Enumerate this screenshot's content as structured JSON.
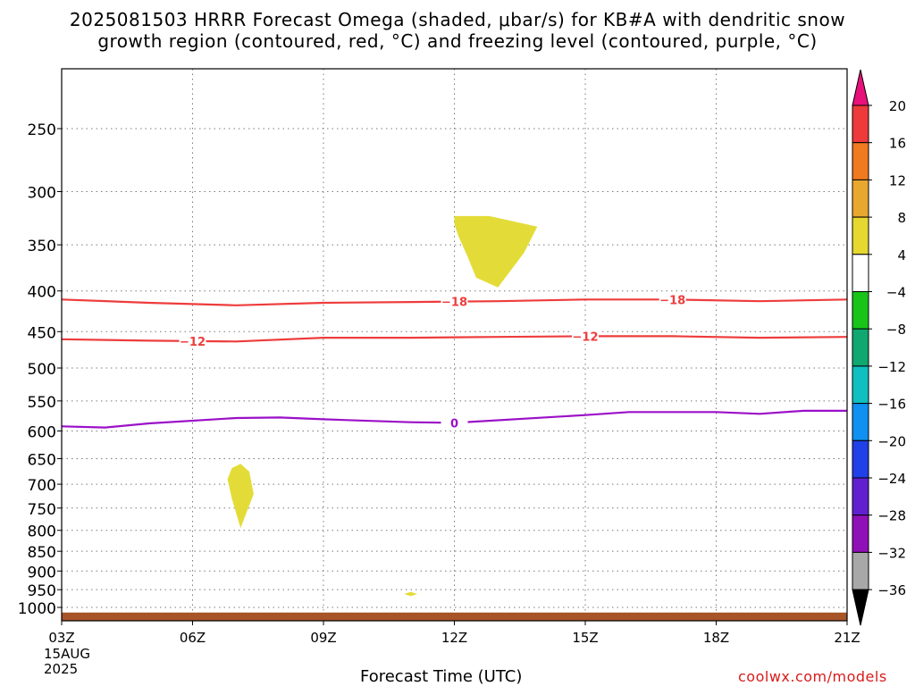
{
  "title": {
    "line1": "2025081503 HRRR Forecast Omega (shaded, μbar/s) for KB#A with dendritic snow",
    "line2": "growth region (contoured, red, °C) and freezing level (contoured, purple, °C)"
  },
  "xlabel": "Forecast Time (UTC)",
  "credit": "coolwx.com/models",
  "chart_data": {
    "type": "heatmap",
    "x_axis": {
      "ticks": [
        "03Z",
        "06Z",
        "09Z",
        "12Z",
        "15Z",
        "18Z",
        "21Z"
      ],
      "tick_hours": [
        3,
        6,
        9,
        12,
        15,
        18,
        21
      ],
      "date_label": [
        "15AUG",
        "2025"
      ],
      "range_hours": [
        3,
        21
      ]
    },
    "y_axis": {
      "label": "",
      "ticks": [
        250,
        300,
        350,
        400,
        450,
        500,
        550,
        600,
        650,
        700,
        750,
        800,
        850,
        900,
        950,
        1000
      ],
      "range_hPa": [
        200,
        1030
      ],
      "scale": "log",
      "inverted": true
    },
    "grid": true,
    "colorbar": {
      "ticks": [
        "20",
        "16",
        "12",
        "8",
        "4",
        "−4",
        "−8",
        "−12",
        "−16",
        "−20",
        "−24",
        "−28",
        "−32",
        "−36"
      ],
      "colors": [
        "#ee3a3a",
        "#f07a20",
        "#e8a830",
        "#e6d830",
        "#ffffff",
        "#18c418",
        "#10a870",
        "#10c0c0",
        "#1090f0",
        "#2040e8",
        "#6020d0",
        "#9010b8",
        "#a8a8a8"
      ],
      "top_arrow_color": "#e8107a",
      "bottom_arrow_color": "#000000"
    },
    "shaded_regions": [
      {
        "value_range": "4 to 8",
        "color": "#e3dc38",
        "points": [
          [
            12.0,
            322
          ],
          [
            12.8,
            322
          ],
          [
            13.9,
            332
          ],
          [
            13.6,
            358
          ],
          [
            13.0,
            396
          ],
          [
            12.5,
            385
          ],
          [
            12.3,
            362
          ],
          [
            12.1,
            342
          ],
          [
            12.0,
            330
          ]
        ]
      },
      {
        "value_range": "4 to 8",
        "color": "#e3dc38",
        "points": [
          [
            6.9,
            668
          ],
          [
            7.1,
            660
          ],
          [
            7.3,
            675
          ],
          [
            7.4,
            720
          ],
          [
            7.1,
            795
          ],
          [
            6.9,
            730
          ],
          [
            6.8,
            690
          ]
        ]
      },
      {
        "value_range": "4 to 8",
        "color": "#e3dc38",
        "points": [
          [
            10.85,
            962
          ],
          [
            11.0,
            956
          ],
          [
            11.15,
            962
          ],
          [
            11.0,
            968
          ]
        ]
      }
    ],
    "contours": [
      {
        "level": "−18",
        "color": "#ee3c3c",
        "label_at_hours": [
          12,
          17
        ],
        "x": [
          3,
          5,
          7,
          9,
          11,
          13,
          15,
          17,
          19,
          21
        ],
        "y": [
          410,
          414,
          417,
          414,
          413,
          412,
          410,
          410,
          412,
          410
        ]
      },
      {
        "level": "−12",
        "color": "#ee3c3c",
        "label_at_hours": [
          6,
          15
        ],
        "x": [
          3,
          5,
          7,
          9,
          11,
          13,
          15,
          17,
          19,
          21
        ],
        "y": [
          460,
          462,
          463,
          458,
          458,
          457,
          456,
          456,
          458,
          457
        ]
      },
      {
        "level": "0",
        "color": "#9b10c8",
        "label_at_hours": [
          12
        ],
        "x": [
          3,
          4,
          5,
          7,
          8,
          9,
          11,
          12,
          15,
          16,
          18,
          19,
          20,
          21
        ],
        "y": [
          592,
          594,
          587,
          578,
          577,
          580,
          585,
          586,
          573,
          568,
          568,
          571,
          566,
          566
        ]
      }
    ],
    "terrain": {
      "color": "#a65428",
      "top_hPa": 1015
    }
  }
}
